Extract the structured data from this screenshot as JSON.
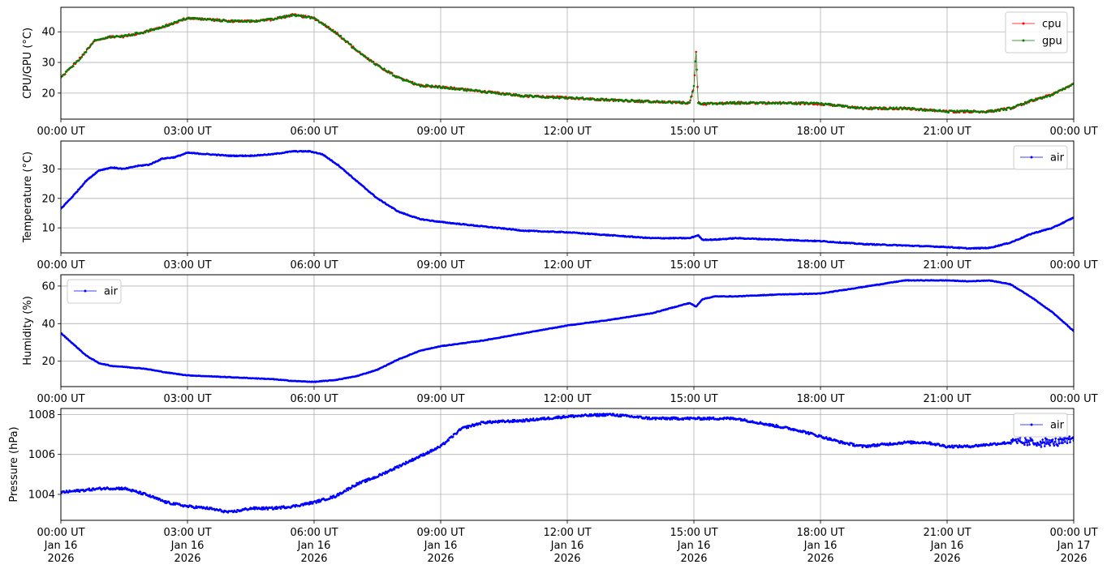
{
  "chart_data": [
    {
      "type": "line",
      "ylabel": "CPU/GPU (°C)",
      "ylim": [
        11.5,
        48
      ],
      "yticks": [
        20,
        30,
        40
      ],
      "xlim": [
        0,
        24
      ],
      "xtick_labels": [
        "00:00 UT",
        "03:00 UT",
        "06:00 UT",
        "09:00 UT",
        "12:00 UT",
        "15:00 UT",
        "18:00 UT",
        "21:00 UT",
        "00:00 UT"
      ],
      "grid": true,
      "legend_position": "upper right",
      "series": [
        {
          "name": "cpu",
          "color": "#ff0000",
          "x": [
            0,
            0.5,
            0.8,
            1.2,
            1.5,
            2,
            2.5,
            3,
            3.5,
            4,
            4.5,
            5,
            5.5,
            6,
            6.5,
            7,
            7.5,
            8,
            8.5,
            9,
            10,
            11,
            12,
            13,
            14,
            14.9,
            15.0,
            15.05,
            15.1,
            15.2,
            15.5,
            16,
            17,
            18,
            19,
            20,
            21,
            22,
            22.5,
            23,
            23.5,
            24
          ],
          "y": [
            25,
            32,
            37,
            38.5,
            38.5,
            40,
            42,
            44.5,
            44,
            43.5,
            43.5,
            44,
            45.5,
            44.5,
            40,
            34,
            29,
            25,
            22.5,
            22,
            20.5,
            19,
            18.5,
            17.8,
            17.2,
            16.8,
            22,
            34,
            17,
            16.5,
            16.5,
            16.8,
            16.8,
            16.5,
            15,
            15,
            14,
            14,
            15,
            17.5,
            19.5,
            23
          ]
        },
        {
          "name": "gpu",
          "color": "#008000",
          "x": [
            0,
            0.5,
            0.8,
            1.2,
            1.5,
            2,
            2.5,
            3,
            3.5,
            4,
            4.5,
            5,
            5.5,
            6,
            6.5,
            7,
            7.5,
            8,
            8.5,
            9,
            10,
            11,
            12,
            13,
            14,
            14.9,
            15.0,
            15.05,
            15.1,
            15.2,
            15.5,
            16,
            17,
            18,
            19,
            20,
            21,
            22,
            22.5,
            23,
            23.5,
            24
          ],
          "y": [
            25,
            32,
            37,
            38.5,
            38.5,
            40,
            42,
            44.5,
            44,
            43.5,
            43.5,
            44,
            45.5,
            44.5,
            40,
            34,
            29,
            25,
            22.5,
            22,
            20.5,
            19,
            18.5,
            17.8,
            17.2,
            16.8,
            22,
            34,
            17,
            16.5,
            16.5,
            16.8,
            16.8,
            16.5,
            15,
            15,
            14,
            14,
            15,
            17.5,
            19.5,
            23
          ]
        }
      ]
    },
    {
      "type": "line",
      "ylabel": "Temperature (°C)",
      "ylim": [
        1.5,
        39.5
      ],
      "yticks": [
        10,
        20,
        30
      ],
      "xlim": [
        0,
        24
      ],
      "xtick_labels": [
        "00:00 UT",
        "03:00 UT",
        "06:00 UT",
        "09:00 UT",
        "12:00 UT",
        "15:00 UT",
        "18:00 UT",
        "21:00 UT",
        "00:00 UT"
      ],
      "grid": true,
      "legend_position": "upper right",
      "series": [
        {
          "name": "air",
          "color": "#0000ff",
          "x": [
            0,
            0.3,
            0.6,
            0.9,
            1.2,
            1.5,
            1.8,
            2.1,
            2.4,
            2.7,
            3.0,
            3.5,
            4.0,
            4.5,
            5.0,
            5.5,
            5.9,
            6.2,
            6.6,
            7.0,
            7.5,
            8.0,
            8.5,
            9.0,
            10,
            11,
            12,
            13,
            14,
            14.9,
            15.1,
            15.2,
            15.5,
            16,
            17,
            18,
            19,
            20,
            21,
            21.5,
            22,
            22.5,
            23,
            23.5,
            24
          ],
          "y": [
            16.5,
            21,
            26,
            29.5,
            30.5,
            30,
            31,
            31.5,
            33.5,
            34,
            35.5,
            35,
            34.5,
            34.5,
            35,
            36,
            36,
            35,
            31,
            26,
            20,
            15.5,
            13,
            12,
            10.5,
            9,
            8.5,
            7.5,
            6.5,
            6.5,
            7.5,
            6,
            6,
            6.5,
            6,
            5.5,
            4.5,
            4,
            3.5,
            3,
            3.2,
            5,
            8,
            10,
            13.5
          ]
        }
      ]
    },
    {
      "type": "line",
      "ylabel": "Humidity (%)",
      "ylim": [
        6.5,
        66
      ],
      "yticks": [
        20,
        40,
        60
      ],
      "xlim": [
        0,
        24
      ],
      "xtick_labels": [
        "00:00 UT",
        "03:00 UT",
        "06:00 UT",
        "09:00 UT",
        "12:00 UT",
        "15:00 UT",
        "18:00 UT",
        "21:00 UT",
        "00:00 UT"
      ],
      "grid": true,
      "legend_position": "upper left",
      "series": [
        {
          "name": "air",
          "color": "#0000ff",
          "x": [
            0,
            0.3,
            0.6,
            0.9,
            1.2,
            1.5,
            2.0,
            2.5,
            3.0,
            3.5,
            4.0,
            4.5,
            5.0,
            5.5,
            6.0,
            6.5,
            7.0,
            7.5,
            8.0,
            8.5,
            9.0,
            10,
            11,
            12,
            13,
            14,
            14.9,
            15.05,
            15.2,
            15.5,
            16,
            17,
            18,
            19,
            20,
            21,
            21.5,
            22,
            22.5,
            23,
            23.5,
            24
          ],
          "y": [
            35,
            29,
            23,
            19,
            17.5,
            17,
            16,
            14,
            12.5,
            12,
            11.5,
            11,
            10.5,
            9.5,
            9,
            10,
            12,
            15.5,
            21,
            25.5,
            28,
            31,
            35,
            39,
            42,
            45.5,
            51,
            49,
            53,
            54.5,
            54.5,
            55.5,
            56,
            59.5,
            63,
            63,
            62.5,
            63,
            61,
            54,
            46,
            36
          ]
        }
      ]
    },
    {
      "type": "line",
      "ylabel": "Pressure (hPa)",
      "ylim": [
        1002.7,
        1008.3
      ],
      "yticks": [
        1004,
        1006,
        1008
      ],
      "xlim": [
        0,
        24
      ],
      "xtick_labels": [
        "00:00 UT\nJan 16\n2026",
        "03:00 UT\nJan 16\n2026",
        "06:00 UT\nJan 16\n2026",
        "09:00 UT\nJan 16\n2026",
        "12:00 UT\nJan 16\n2026",
        "15:00 UT\nJan 16\n2026",
        "18:00 UT\nJan 16\n2026",
        "21:00 UT\nJan 16\n2026",
        "00:00 UT\nJan 17\n2026"
      ],
      "grid": true,
      "legend_position": "upper right",
      "series": [
        {
          "name": "air",
          "color": "#0000ff",
          "x": [
            0,
            0.5,
            1.0,
            1.5,
            2.0,
            2.5,
            3.0,
            3.5,
            4.0,
            4.5,
            5.0,
            5.5,
            6.0,
            6.5,
            7.0,
            7.5,
            8.0,
            8.5,
            9.0,
            9.5,
            10.0,
            11,
            12,
            13,
            14,
            15,
            16,
            16.5,
            17,
            17.5,
            18,
            18.5,
            19,
            19.5,
            20,
            20.5,
            21,
            21.5,
            22,
            22.5,
            23,
            23.5,
            24
          ],
          "y": [
            1004.1,
            1004.2,
            1004.3,
            1004.3,
            1004.0,
            1003.6,
            1003.4,
            1003.3,
            1003.1,
            1003.3,
            1003.3,
            1003.4,
            1003.6,
            1003.9,
            1004.5,
            1004.9,
            1005.4,
            1005.9,
            1006.4,
            1007.3,
            1007.6,
            1007.7,
            1007.9,
            1008.0,
            1007.8,
            1007.8,
            1007.8,
            1007.6,
            1007.4,
            1007.2,
            1006.9,
            1006.6,
            1006.4,
            1006.5,
            1006.6,
            1006.6,
            1006.4,
            1006.4,
            1006.5,
            1006.6,
            1006.6,
            1006.6,
            1006.7
          ]
        }
      ]
    }
  ]
}
